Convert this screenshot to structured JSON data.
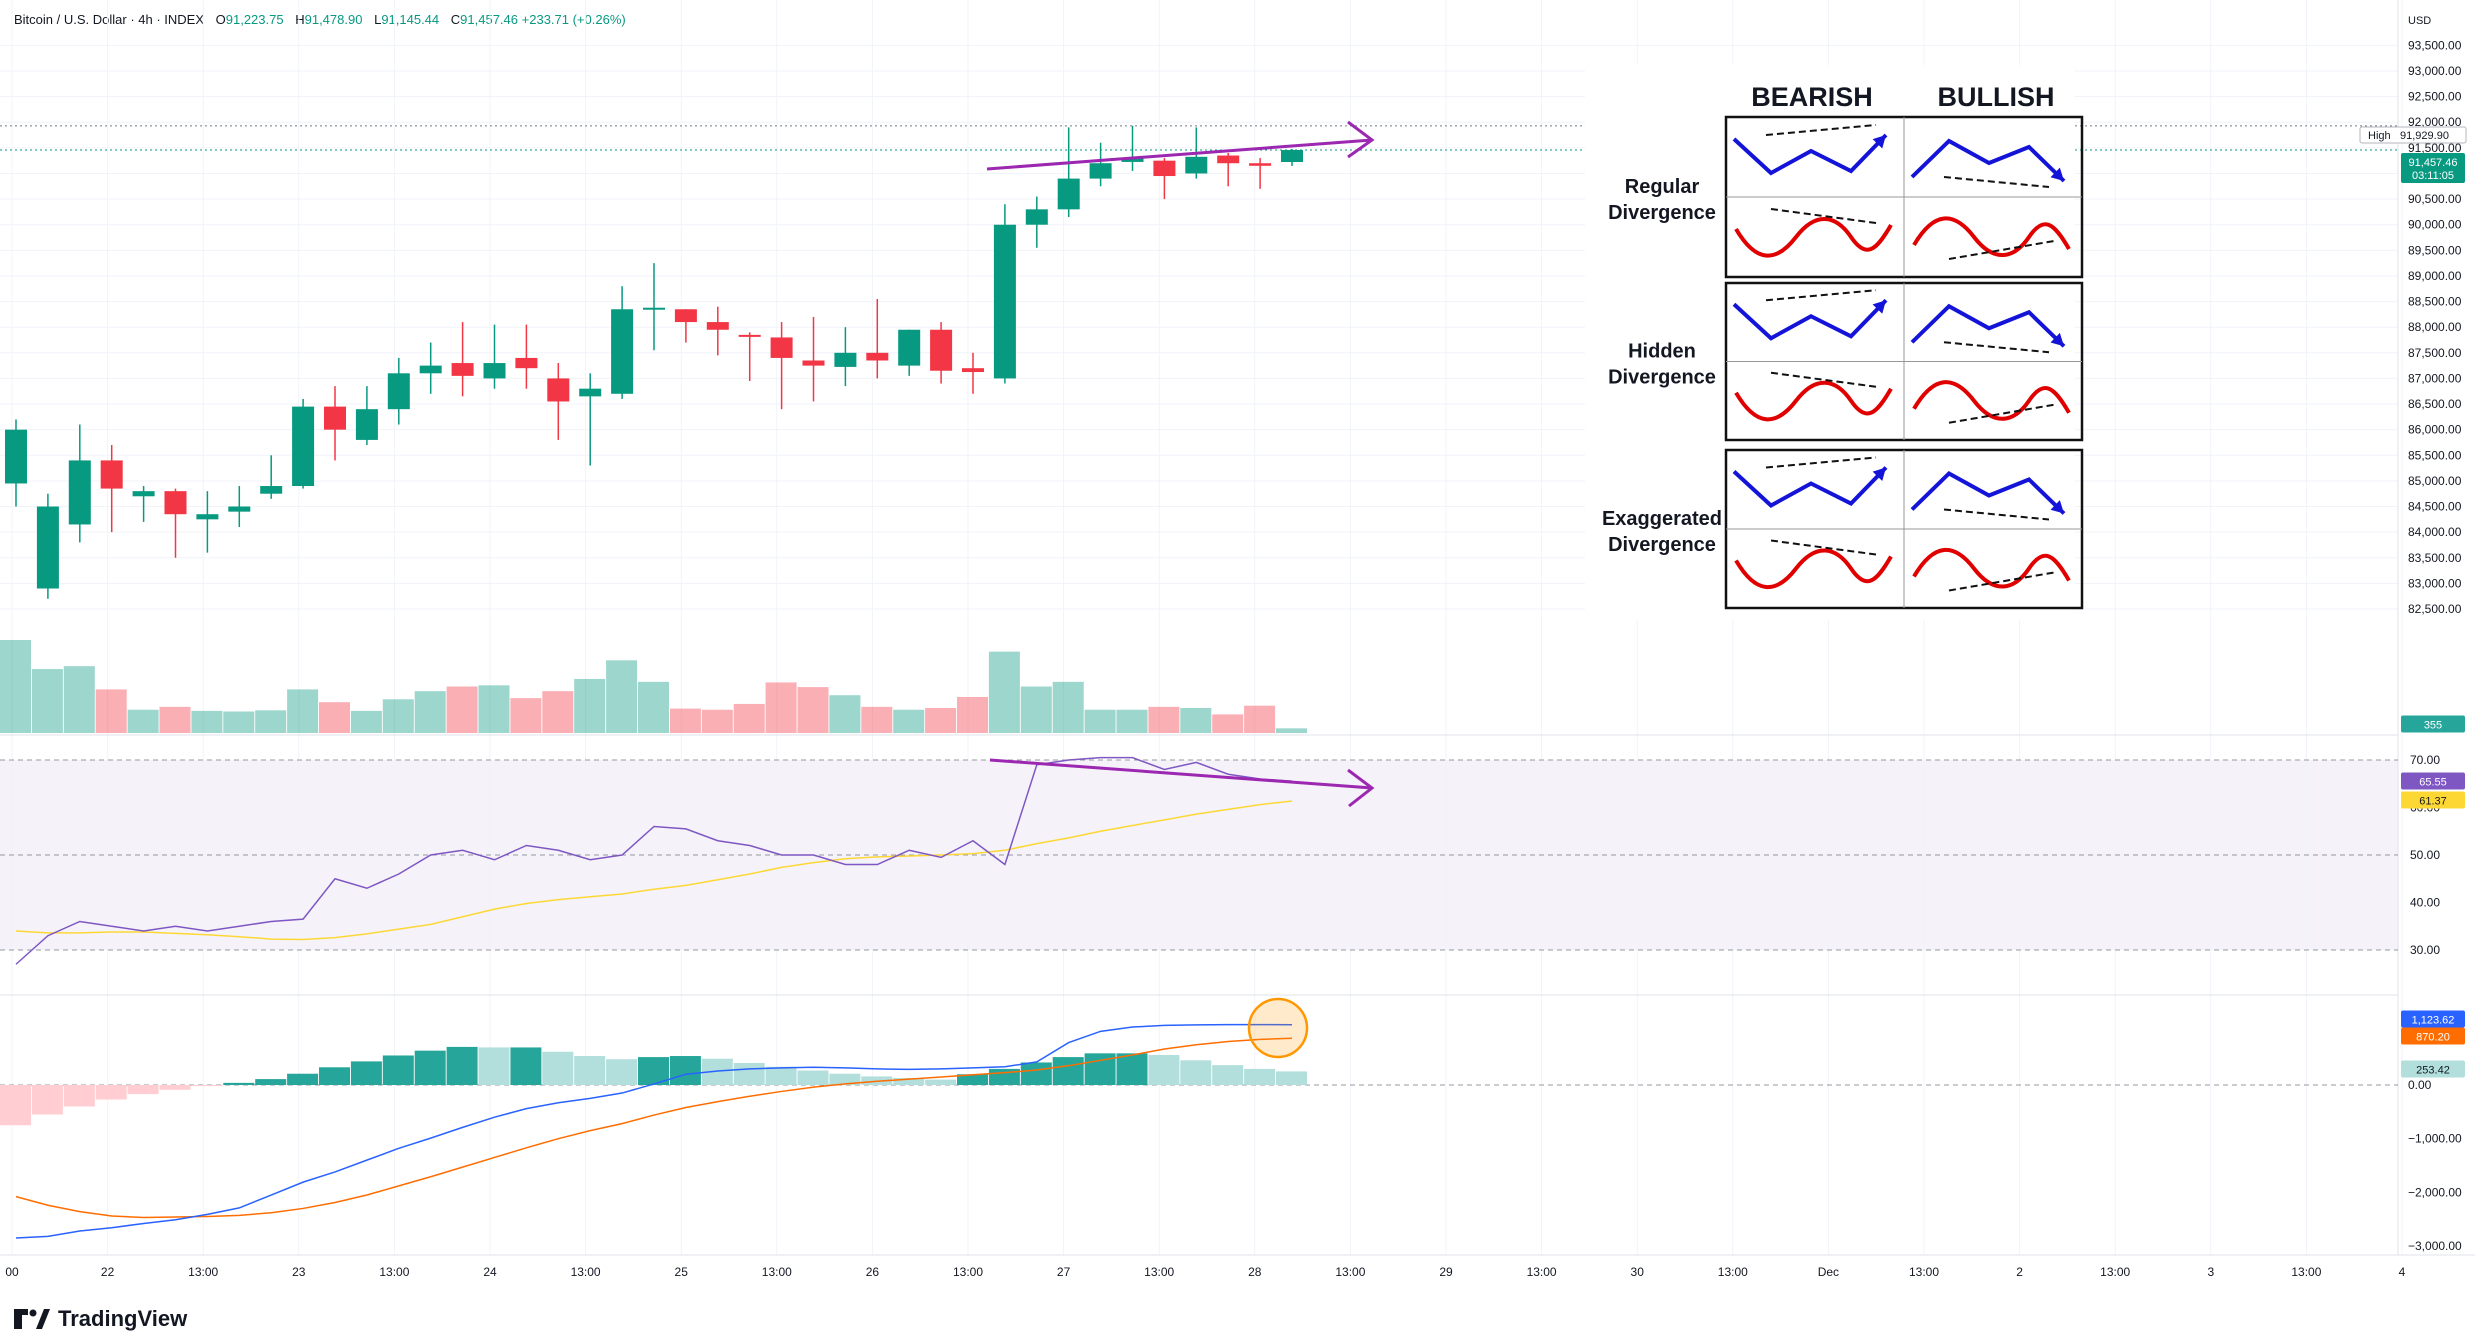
{
  "header": {
    "symbol": "Bitcoin / U.S. Dollar · 4h · INDEX",
    "open_label": "O",
    "open": "91,223.75",
    "high_label": "H",
    "high": "91,478.90",
    "low_label": "L",
    "low": "91,145.44",
    "close_label": "C",
    "close": "91,457.46",
    "change": "+233.71 (+0.26%)"
  },
  "brand": {
    "name": "TradingView"
  },
  "currency": "USD",
  "colors": {
    "up": "#089981",
    "down": "#f23645",
    "rsi": "#7e57c2",
    "rsi_ma": "#fdd835",
    "macd": "#2962ff",
    "signal": "#ff6d00",
    "arrow": "#9c27b0",
    "bear_line": "#1414d8",
    "bull_line": "#e00000"
  },
  "badges": {
    "high_label": "High",
    "high_value": "91,929.90",
    "last_price": "91,457.46",
    "countdown": "03:11:05",
    "volume": "355",
    "rsi": "65.55",
    "rsi_ma": "61.37",
    "macd": "1,123.62",
    "signal": "870.20",
    "hist": "253.42"
  },
  "infographic": {
    "col_bear": "BEARISH",
    "col_bull": "BULLISH",
    "rows": [
      {
        "line1": "Regular",
        "line2": "Divergence"
      },
      {
        "line1": "Hidden",
        "line2": "Divergence"
      },
      {
        "line1": "Exaggerated",
        "line2": "Divergence"
      }
    ]
  },
  "chart_data": [
    {
      "type": "candlestick",
      "title": "Bitcoin / U.S. Dollar · 4h · INDEX",
      "ylim": [
        81600,
        93800
      ],
      "y_ticks": [
        82500,
        83000,
        83500,
        84000,
        84500,
        85000,
        85500,
        86000,
        86500,
        87000,
        87500,
        88000,
        88500,
        89000,
        89500,
        90000,
        90500,
        91000,
        91500,
        92000,
        92500,
        93000,
        93500
      ],
      "y_tick_labels": [
        "82,500.00",
        "83,000.00",
        "83,500.00",
        "84,000.00",
        "84,500.00",
        "85,000.00",
        "85,500.00",
        "86,000.00",
        "86,500.00",
        "87,000.00",
        "87,500.00",
        "88,000.00",
        "88,500.00",
        "89,000.00",
        "89,500.00",
        "90,000.00",
        "90,500.00",
        "91,000.00",
        "91,500.00",
        "92,000.00",
        "92,500.00",
        "93,000.00",
        "93,500.00"
      ],
      "x_tick_labels": [
        "00",
        "22",
        "13:00",
        "23",
        "13:00",
        "24",
        "13:00",
        "25",
        "13:00",
        "26",
        "13:00",
        "27",
        "13:00",
        "28",
        "13:00",
        "29",
        "13:00",
        "30",
        "13:00",
        "Dec",
        "13:00",
        "2",
        "13:00",
        "3",
        "13:00",
        "4"
      ],
      "high_line": 91929.9,
      "last_price": 91457.46,
      "candles": [
        {
          "o": 84950,
          "h": 86200,
          "l": 84500,
          "c": 86000
        },
        {
          "o": 82900,
          "h": 84750,
          "l": 82700,
          "c": 84500
        },
        {
          "o": 84150,
          "h": 86100,
          "l": 83800,
          "c": 85400
        },
        {
          "o": 85400,
          "h": 85700,
          "l": 84000,
          "c": 84850
        },
        {
          "o": 84700,
          "h": 84900,
          "l": 84200,
          "c": 84800
        },
        {
          "o": 84800,
          "h": 84850,
          "l": 83500,
          "c": 84350
        },
        {
          "o": 84250,
          "h": 84800,
          "l": 83600,
          "c": 84350
        },
        {
          "o": 84400,
          "h": 84900,
          "l": 84100,
          "c": 84500
        },
        {
          "o": 84750,
          "h": 85500,
          "l": 84650,
          "c": 84900
        },
        {
          "o": 84900,
          "h": 86600,
          "l": 84850,
          "c": 86450
        },
        {
          "o": 86450,
          "h": 86850,
          "l": 85400,
          "c": 86000
        },
        {
          "o": 85800,
          "h": 86850,
          "l": 85700,
          "c": 86400
        },
        {
          "o": 86400,
          "h": 87400,
          "l": 86100,
          "c": 87100
        },
        {
          "o": 87100,
          "h": 87700,
          "l": 86700,
          "c": 87250
        },
        {
          "o": 87300,
          "h": 88100,
          "l": 86650,
          "c": 87050
        },
        {
          "o": 87000,
          "h": 88050,
          "l": 86800,
          "c": 87300
        },
        {
          "o": 87400,
          "h": 88050,
          "l": 86800,
          "c": 87200
        },
        {
          "o": 87000,
          "h": 87300,
          "l": 85800,
          "c": 86550
        },
        {
          "o": 86650,
          "h": 87100,
          "l": 85300,
          "c": 86800
        },
        {
          "o": 86700,
          "h": 88800,
          "l": 86600,
          "c": 88350
        },
        {
          "o": 88350,
          "h": 89250,
          "l": 87550,
          "c": 88380
        },
        {
          "o": 88350,
          "h": 88350,
          "l": 87700,
          "c": 88100
        },
        {
          "o": 88100,
          "h": 88400,
          "l": 87450,
          "c": 87950
        },
        {
          "o": 87850,
          "h": 87900,
          "l": 86950,
          "c": 87825
        },
        {
          "o": 87800,
          "h": 88100,
          "l": 86400,
          "c": 87400
        },
        {
          "o": 87350,
          "h": 88200,
          "l": 86550,
          "c": 87250
        },
        {
          "o": 87225,
          "h": 88000,
          "l": 86850,
          "c": 87500
        },
        {
          "o": 87500,
          "h": 88550,
          "l": 87000,
          "c": 87350
        },
        {
          "o": 87250,
          "h": 87950,
          "l": 87050,
          "c": 87950
        },
        {
          "o": 87950,
          "h": 88100,
          "l": 86900,
          "c": 87150
        },
        {
          "o": 87200,
          "h": 87500,
          "l": 86700,
          "c": 87125
        },
        {
          "o": 87000,
          "h": 90400,
          "l": 86900,
          "c": 90000
        },
        {
          "o": 90000,
          "h": 90550,
          "l": 89550,
          "c": 90300
        },
        {
          "o": 90300,
          "h": 91900,
          "l": 90150,
          "c": 90900
        },
        {
          "o": 90900,
          "h": 91600,
          "l": 90750,
          "c": 91200
        },
        {
          "o": 91225,
          "h": 91930,
          "l": 91050,
          "c": 91300
        },
        {
          "o": 91250,
          "h": 91300,
          "l": 90500,
          "c": 90950
        },
        {
          "o": 91000,
          "h": 91900,
          "l": 90900,
          "c": 91325
        },
        {
          "o": 91350,
          "h": 91400,
          "l": 90750,
          "c": 91200
        },
        {
          "o": 91200,
          "h": 91300,
          "l": 90700,
          "c": 91150
        },
        {
          "o": 91223.75,
          "h": 91478.9,
          "l": 91145.44,
          "c": 91457.46
        }
      ]
    },
    {
      "type": "bar",
      "title": "Volume",
      "values": [
        1600,
        1100,
        1150,
        750,
        400,
        450,
        380,
        370,
        390,
        750,
        530,
        380,
        580,
        720,
        800,
        820,
        600,
        720,
        930,
        1250,
        880,
        420,
        400,
        500,
        870,
        790,
        650,
        450,
        400,
        430,
        620,
        1400,
        800,
        880,
        400,
        400,
        450,
        430,
        320,
        470,
        80
      ]
    },
    {
      "type": "line",
      "title": "RSI",
      "ylim": [
        30,
        70
      ],
      "y_ticks": [
        30,
        40,
        50,
        60,
        70
      ],
      "y_tick_labels": [
        "30.00",
        "40.00",
        "50.00",
        "60.00",
        "70.00"
      ],
      "series": [
        {
          "values": [
            27,
            33,
            36,
            35,
            34,
            35,
            34,
            35,
            36,
            36.5,
            45,
            43,
            46,
            50,
            51,
            49,
            52,
            51,
            49,
            50,
            56,
            55.5,
            53,
            52,
            50,
            50,
            48,
            48,
            51,
            49.5,
            53,
            48,
            69,
            70,
            70.5,
            70.5,
            68,
            69.5,
            67,
            66,
            65.55
          ]
        },
        {
          "values": [
            34,
            33.6,
            33.6,
            33.8,
            33.8,
            33.5,
            33.2,
            32.8,
            32.3,
            32.2,
            32.6,
            33.4,
            34.4,
            35.4,
            37,
            38.6,
            39.8,
            40.6,
            41.2,
            41.8,
            42.8,
            43.6,
            44.8,
            46,
            47.4,
            48.4,
            49.2,
            49.6,
            49.8,
            50,
            50.3,
            51,
            52.4,
            53.6,
            55,
            56.2,
            57.4,
            58.6,
            59.6,
            60.6,
            61.37
          ]
        }
      ]
    },
    {
      "type": "bar",
      "title": "MACD",
      "ylim": [
        -3200,
        2200
      ],
      "y_ticks": [
        -3000,
        -2000,
        -1000,
        0
      ],
      "y_tick_labels": [
        "−3,000.00",
        "−2,000.00",
        "−1,000.00",
        "0.00"
      ],
      "values": [
        -750,
        -550,
        -400,
        -270,
        -170,
        -90,
        -20,
        40,
        110,
        210,
        330,
        440,
        550,
        640,
        710,
        700,
        700,
        620,
        540,
        480,
        520,
        540,
        490,
        410,
        340,
        270,
        210,
        160,
        130,
        100,
        200,
        300,
        420,
        520,
        590,
        590,
        560,
        460,
        370,
        300,
        253.42
      ],
      "series": [
        {
          "values": [
            -2850,
            -2820,
            -2720,
            -2660,
            -2580,
            -2510,
            -2410,
            -2290,
            -2050,
            -1810,
            -1620,
            -1400,
            -1180,
            -990,
            -790,
            -600,
            -440,
            -330,
            -250,
            -150,
            20,
            200,
            260,
            300,
            320,
            330,
            320,
            300,
            290,
            300,
            320,
            340,
            430,
            790,
            1000,
            1080,
            1110,
            1120,
            1124,
            1124,
            1123.62
          ]
        },
        {
          "values": [
            -2080,
            -2240,
            -2360,
            -2440,
            -2470,
            -2460,
            -2450,
            -2430,
            -2380,
            -2300,
            -2190,
            -2050,
            -1880,
            -1710,
            -1530,
            -1350,
            -1170,
            -1000,
            -850,
            -720,
            -560,
            -420,
            -310,
            -210,
            -120,
            -40,
            20,
            70,
            110,
            150,
            190,
            230,
            280,
            360,
            460,
            560,
            670,
            750,
            810,
            850,
            870.2
          ]
        }
      ]
    }
  ]
}
